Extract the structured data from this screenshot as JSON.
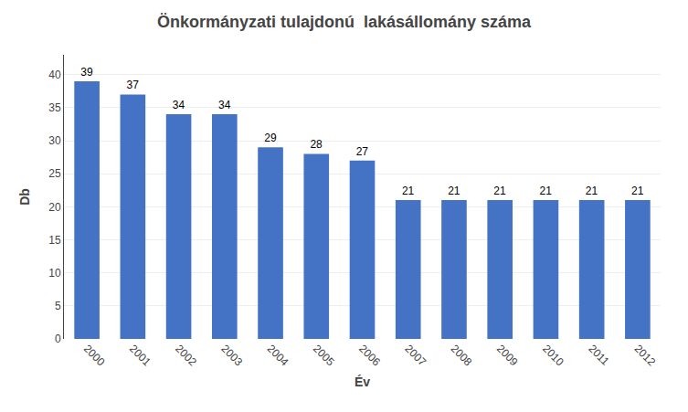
{
  "chart_data": {
    "type": "bar",
    "title": "Önkormányzati tulajdonú  lakásállomány száma",
    "xlabel": "Év",
    "ylabel": "Db",
    "categories": [
      "2000",
      "2001",
      "2002",
      "2003",
      "2004",
      "2005",
      "2006",
      "2007",
      "2008",
      "2009",
      "2010",
      "2011",
      "2012"
    ],
    "values": [
      39,
      37,
      34,
      34,
      29,
      28,
      27,
      21,
      21,
      21,
      21,
      21,
      21
    ],
    "color": "#4472C4",
    "ylim": [
      0,
      43
    ],
    "yticks": [
      0,
      5,
      10,
      15,
      20,
      25,
      30,
      35,
      40
    ],
    "grid": true,
    "data_labels": true
  }
}
